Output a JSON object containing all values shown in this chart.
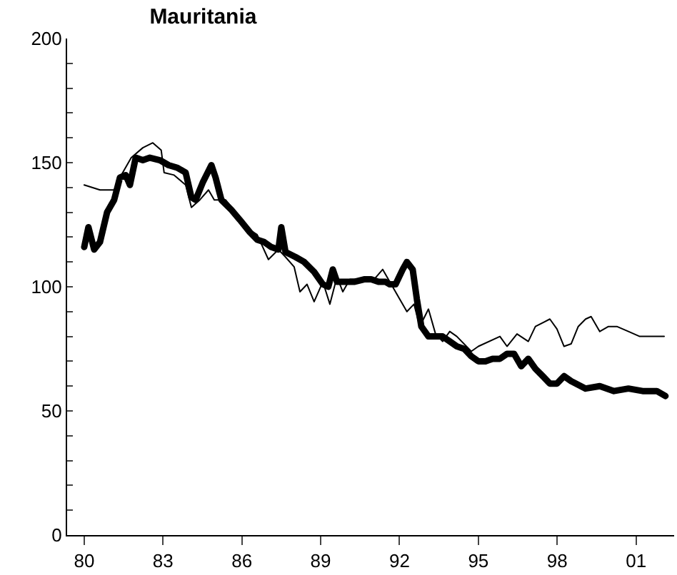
{
  "chart_data": {
    "type": "line",
    "title": "Mauritania",
    "xlim": [
      1979.35,
      2002.45
    ],
    "xticks": [
      {
        "value": 1980,
        "label": "80"
      },
      {
        "value": 1983,
        "label": "83"
      },
      {
        "value": 1986,
        "label": "86"
      },
      {
        "value": 1989,
        "label": "89"
      },
      {
        "value": 1992,
        "label": "92"
      },
      {
        "value": 1995,
        "label": "95"
      },
      {
        "value": 1998,
        "label": "98"
      },
      {
        "value": 2001,
        "label": "01"
      }
    ],
    "ylim": [
      0,
      200
    ],
    "yticks": [
      0,
      {
        "value": 10,
        "label": null
      },
      {
        "value": 20,
        "label": null
      },
      {
        "value": 30,
        "label": null
      },
      {
        "value": 40,
        "label": null
      },
      50,
      {
        "value": 60,
        "label": null
      },
      {
        "value": 70,
        "label": null
      },
      {
        "value": 80,
        "label": null
      },
      {
        "value": 90,
        "label": null
      },
      100,
      {
        "value": 110,
        "label": null
      },
      {
        "value": 120,
        "label": null
      },
      {
        "value": 130,
        "label": null
      },
      {
        "value": 140,
        "label": null
      },
      150,
      {
        "value": 160,
        "label": null
      },
      {
        "value": 170,
        "label": null
      },
      {
        "value": 180,
        "label": null
      },
      {
        "value": 190,
        "label": null
      },
      200
    ],
    "line_style": "solid",
    "series": [
      {
        "color": "#000000",
        "x": [
          1980.0,
          1980.16,
          1980.38,
          1980.6,
          1980.87,
          1981.14,
          1981.36,
          1981.58,
          1981.74,
          1981.96,
          1982.23,
          1982.5,
          1982.88,
          1983.21,
          1983.53,
          1983.86,
          1984.08,
          1984.24,
          1984.51,
          1984.84,
          1985.0,
          1985.22,
          1985.6,
          1985.92,
          1986.3,
          1986.58,
          1986.85,
          1987.12,
          1987.39,
          1987.5,
          1987.66,
          1988.04,
          1988.37,
          1988.75,
          1989.08,
          1989.29,
          1989.46,
          1989.62,
          1989.95,
          1990.27,
          1990.65,
          1990.92,
          1991.2,
          1991.47,
          1991.63,
          1991.85,
          1992.12,
          1992.28,
          1992.5,
          1992.66,
          1992.83,
          1993.1,
          1993.37,
          1993.64,
          1993.91,
          1994.18,
          1994.46,
          1994.73,
          1995.0,
          1995.27,
          1995.54,
          1995.82,
          1996.09,
          1996.36,
          1996.63,
          1996.9,
          1997.17,
          1997.45,
          1997.72,
          1997.99,
          1998.26,
          1998.53,
          1999.08,
          1999.62,
          2000.16,
          2000.71,
          2001.25,
          2001.79,
          2002.12
        ],
        "values": [
          116,
          124,
          115,
          118,
          130,
          135,
          144,
          145,
          141,
          152,
          151,
          152,
          151,
          149,
          148,
          146,
          136,
          135,
          142,
          149,
          144,
          135,
          131,
          127,
          122,
          119,
          118,
          116,
          115,
          124,
          114,
          112,
          110,
          106,
          101,
          100,
          107,
          102,
          102,
          102,
          103,
          103,
          102,
          102,
          101,
          101,
          107,
          110,
          107,
          95,
          84,
          80,
          80,
          80,
          78,
          76,
          75,
          72,
          70,
          70,
          71,
          71,
          73,
          73,
          68,
          71,
          67,
          64,
          61,
          61,
          64,
          62,
          59,
          60,
          58,
          59,
          58,
          58,
          56
        ]
      },
      {
        "color": "#000000",
        "x": [
          1980.0,
          1980.6,
          1981.14,
          1981.41,
          1981.79,
          1982.23,
          1982.61,
          1982.93,
          1983.04,
          1983.42,
          1983.86,
          1984.08,
          1984.4,
          1984.73,
          1984.95,
          1985.38,
          1985.76,
          1986.14,
          1986.58,
          1987.01,
          1987.39,
          1987.66,
          1987.99,
          1988.21,
          1988.48,
          1988.75,
          1989.08,
          1989.35,
          1989.62,
          1989.84,
          1990.11,
          1990.71,
          1991.03,
          1991.36,
          1992.01,
          1992.28,
          1992.55,
          1992.77,
          1993.1,
          1993.37,
          1993.64,
          1993.91,
          1994.18,
          1994.73,
          1995.0,
          1995.82,
          1996.09,
          1996.47,
          1996.9,
          1997.17,
          1997.72,
          1997.99,
          1998.26,
          1998.53,
          1998.8,
          1999.08,
          1999.29,
          1999.62,
          1999.95,
          2000.27,
          2000.71,
          2001.14,
          2002.07
        ],
        "values": [
          141,
          139,
          139,
          145,
          152,
          156,
          158,
          155,
          146,
          145,
          141,
          132,
          135,
          139,
          135,
          135,
          130,
          124,
          121,
          111,
          115,
          112,
          108,
          98,
          101,
          94,
          102,
          93,
          104,
          98,
          103,
          103,
          103,
          107,
          95,
          90,
          93,
          84,
          91,
          81,
          78,
          82,
          80,
          74,
          76,
          80,
          76,
          81,
          78,
          84,
          87,
          83,
          76,
          77,
          84,
          87,
          88,
          82,
          84,
          84,
          82,
          80,
          80
        ]
      }
    ]
  }
}
